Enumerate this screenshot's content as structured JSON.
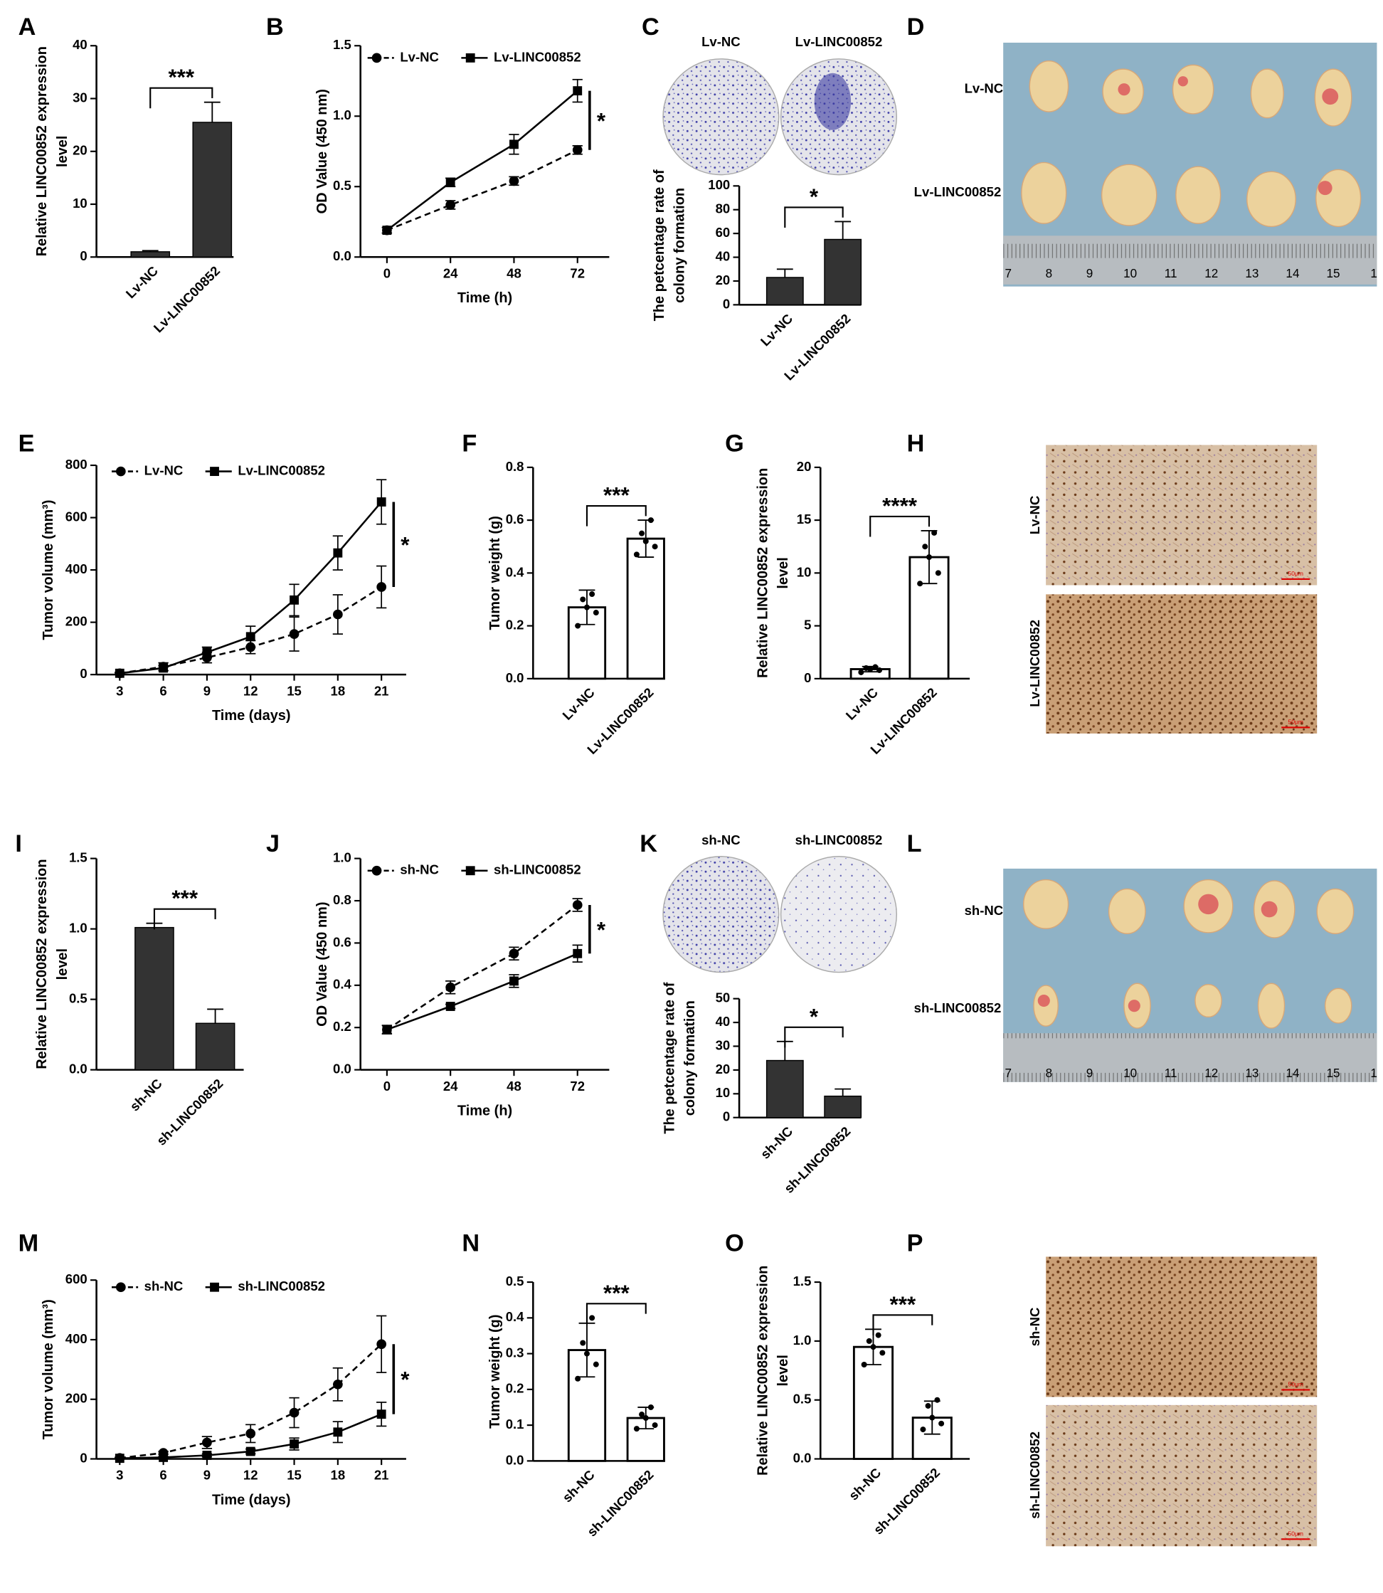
{
  "chart_data": [
    {
      "type": "bar",
      "panel": "A",
      "ylabel": [
        "Relative LINC00852 expression",
        "level"
      ],
      "categories": [
        "Lv-NC",
        "Lv-LINC00852"
      ],
      "values": [
        1,
        25.5
      ],
      "errors": [
        0.2,
        3.8
      ],
      "bar_fill": "#333333",
      "ylim": [
        0,
        40
      ],
      "yticks": [
        0,
        10,
        20,
        30,
        40
      ],
      "significance": "***"
    },
    {
      "type": "line",
      "panel": "B",
      "ylabel": [
        "OD Value (450 nm)"
      ],
      "xlabel": "Time (h)",
      "x": [
        0,
        24,
        48,
        72
      ],
      "xlim": [
        -10,
        84
      ],
      "xticks": [
        0,
        24,
        48,
        72
      ],
      "ylim": [
        0,
        1.5
      ],
      "yticks": [
        {
          "value": 0,
          "label": "0.0"
        },
        0.5,
        {
          "value": 1,
          "label": "1.0"
        },
        1.5
      ],
      "legend": "upper left",
      "series": [
        {
          "name": "Lv-NC",
          "color": "#000000",
          "line_style": "dashed",
          "marker": "circle",
          "values": [
            0.19,
            0.37,
            0.54,
            0.76
          ],
          "errors": [
            0.02,
            0.03,
            0.03,
            0.03
          ]
        },
        {
          "name": "Lv-LINC00852",
          "color": "#000000",
          "line_style": "solid",
          "marker": "square",
          "values": [
            0.19,
            0.53,
            0.8,
            1.18
          ],
          "errors": [
            0.02,
            0.03,
            0.07,
            0.08
          ]
        }
      ],
      "significance": "*"
    },
    {
      "type": "bar",
      "ylabel": [
        "The petcentage rate of",
        "colony formation"
      ],
      "categories": [
        "Lv-NC",
        "Lv-LINC00852"
      ],
      "values": [
        23,
        55
      ],
      "errors": [
        7,
        15
      ],
      "bar_fill": "#333333",
      "ylim": [
        0,
        100
      ],
      "yticks": [
        0,
        20,
        40,
        60,
        80,
        100
      ],
      "significance": "*"
    },
    {
      "type": "line",
      "panel": "E",
      "ylabel": [
        "Tumor volume (mm³)"
      ],
      "xlabel": "Time (days)",
      "x": [
        3,
        6,
        9,
        12,
        15,
        18,
        21
      ],
      "xlim": [
        1.4,
        22.7
      ],
      "xticks": [
        3,
        6,
        9,
        12,
        15,
        18,
        21
      ],
      "ylim": [
        0,
        800
      ],
      "yticks": [
        0,
        200,
        400,
        600,
        800
      ],
      "legend": "upper left",
      "series": [
        {
          "name": "Lv-NC",
          "color": "#000000",
          "line_style": "dashed",
          "marker": "circle",
          "values": [
            5,
            30,
            65,
            105,
            155,
            230,
            335
          ],
          "errors": [
            3,
            15,
            20,
            25,
            65,
            75,
            80
          ]
        },
        {
          "name": "Lv-LINC00852",
          "color": "#000000",
          "line_style": "solid",
          "marker": "square",
          "values": [
            5,
            25,
            85,
            145,
            285,
            465,
            660
          ],
          "errors": [
            3,
            10,
            20,
            40,
            60,
            65,
            85
          ]
        }
      ],
      "significance": "*"
    },
    {
      "type": "bar",
      "panel": "F",
      "ylabel": [
        "Tumor weight (g)"
      ],
      "categories": [
        "Lv-NC",
        "Lv-LINC00852"
      ],
      "values": [
        0.27,
        0.53
      ],
      "errors": [
        0.065,
        0.07
      ],
      "points": [
        [
          0.2,
          0.25,
          0.27,
          0.3,
          0.32
        ],
        [
          0.47,
          0.5,
          0.52,
          0.55,
          0.6
        ]
      ],
      "bar_fill": "#ffffff",
      "ylim": [
        0,
        0.8
      ],
      "yticks": [
        {
          "value": 0,
          "label": "0.0"
        },
        0.2,
        0.4,
        0.6,
        0.8
      ],
      "significance": "***"
    },
    {
      "type": "bar",
      "panel": "G",
      "ylabel": [
        "Relative LINC00852 expression",
        "level"
      ],
      "categories": [
        "Lv-NC",
        "Lv-LINC00852"
      ],
      "values": [
        0.9,
        11.5
      ],
      "errors": [
        0.25,
        2.5
      ],
      "points": [
        [
          0.6,
          0.8,
          0.9,
          1.0,
          1.1
        ],
        [
          9,
          10,
          11.5,
          12.5,
          13.8
        ]
      ],
      "bar_fill": "#ffffff",
      "ylim": [
        0,
        20
      ],
      "yticks": [
        0,
        5,
        10,
        15,
        20
      ],
      "significance": "****"
    },
    {
      "type": "bar",
      "panel": "I",
      "ylabel": [
        "Relative LINC00852 expression",
        "level"
      ],
      "categories": [
        "sh-NC",
        "sh-LINC00852"
      ],
      "values": [
        1.01,
        0.33
      ],
      "errors": [
        0.03,
        0.1
      ],
      "bar_fill": "#333333",
      "ylim": [
        0,
        1.5
      ],
      "yticks": [
        {
          "value": 0,
          "label": "0.0"
        },
        0.5,
        {
          "value": 1,
          "label": "1.0"
        },
        1.5
      ],
      "significance": "***"
    },
    {
      "type": "line",
      "panel": "J",
      "ylabel": [
        "OD Value (450 nm)"
      ],
      "xlabel": "Time (h)",
      "x": [
        0,
        24,
        48,
        72
      ],
      "xlim": [
        -10,
        84
      ],
      "xticks": [
        0,
        24,
        48,
        72
      ],
      "ylim": [
        0,
        1
      ],
      "yticks": [
        {
          "value": 0,
          "label": "0.0"
        },
        0.2,
        0.4,
        0.6,
        0.8,
        {
          "value": 1,
          "label": "1.0"
        }
      ],
      "legend": "upper left",
      "series": [
        {
          "name": "sh-NC",
          "color": "#000000",
          "line_style": "dashed",
          "marker": "circle",
          "values": [
            0.19,
            0.39,
            0.55,
            0.78
          ],
          "errors": [
            0.02,
            0.03,
            0.03,
            0.03
          ]
        },
        {
          "name": "sh-LINC00852",
          "color": "#000000",
          "line_style": "solid",
          "marker": "square",
          "values": [
            0.19,
            0.3,
            0.42,
            0.55
          ],
          "errors": [
            0.02,
            0.01,
            0.03,
            0.04
          ]
        }
      ],
      "significance": "*"
    },
    {
      "type": "bar",
      "ylabel": [
        "The petcentage rate of",
        "colony formation"
      ],
      "categories": [
        "sh-NC",
        "sh-LINC00852"
      ],
      "values": [
        24,
        9
      ],
      "errors": [
        8,
        3
      ],
      "bar_fill": "#333333",
      "ylim": [
        0,
        50
      ],
      "yticks": [
        0,
        10,
        20,
        30,
        40,
        50
      ],
      "significance": "*"
    },
    {
      "type": "line",
      "panel": "M",
      "ylabel": [
        "Tumor volume (mm³)"
      ],
      "xlabel": "Time (days)",
      "x": [
        3,
        6,
        9,
        12,
        15,
        18,
        21
      ],
      "xlim": [
        1.4,
        22.7
      ],
      "xticks": [
        3,
        6,
        9,
        12,
        15,
        18,
        21
      ],
      "ylim": [
        0,
        600
      ],
      "yticks": [
        0,
        200,
        400,
        600
      ],
      "legend": "upper left",
      "series": [
        {
          "name": "sh-NC",
          "color": "#000000",
          "line_style": "dashed",
          "marker": "circle",
          "values": [
            3,
            20,
            55,
            85,
            155,
            250,
            385
          ],
          "errors": [
            2,
            5,
            20,
            30,
            50,
            55,
            95
          ]
        },
        {
          "name": "sh-LINC00852",
          "color": "#000000",
          "line_style": "solid",
          "marker": "square",
          "values": [
            2,
            5,
            12,
            25,
            50,
            90,
            150
          ],
          "errors": [
            1,
            3,
            5,
            8,
            20,
            35,
            40
          ]
        }
      ],
      "significance": "*"
    },
    {
      "type": "bar",
      "panel": "N",
      "ylabel": [
        "Tumor weight (g)"
      ],
      "categories": [
        "sh-NC",
        "sh-LINC00852"
      ],
      "values": [
        0.31,
        0.12
      ],
      "errors": [
        0.075,
        0.03
      ],
      "points": [
        [
          0.23,
          0.27,
          0.3,
          0.33,
          0.4
        ],
        [
          0.09,
          0.1,
          0.12,
          0.13,
          0.15
        ]
      ],
      "bar_fill": "#ffffff",
      "ylim": [
        0,
        0.5
      ],
      "yticks": [
        {
          "value": 0,
          "label": "0.0"
        },
        0.1,
        0.2,
        0.3,
        0.4,
        0.5
      ],
      "significance": "***"
    },
    {
      "type": "bar",
      "panel": "O",
      "ylabel": [
        "Relative LINC00852 expression",
        "level"
      ],
      "categories": [
        "sh-NC",
        "sh-LINC00852"
      ],
      "values": [
        0.95,
        0.35
      ],
      "errors": [
        0.15,
        0.14
      ],
      "points": [
        [
          0.8,
          0.9,
          0.95,
          1.0,
          1.05
        ],
        [
          0.25,
          0.3,
          0.35,
          0.45,
          0.5
        ]
      ],
      "bar_fill": "#ffffff",
      "ylim": [
        0,
        1.5
      ],
      "yticks": [
        {
          "value": 0,
          "label": "0.0"
        },
        0.5,
        {
          "value": 1,
          "label": "1.0"
        },
        1.5
      ],
      "significance": "***"
    }
  ],
  "photos": [
    {
      "panel": "C",
      "labels": [
        "Lv-NC",
        "Lv-LINC00852"
      ]
    },
    {
      "panel": "D",
      "labels": [
        "Lv-NC",
        "Lv-LINC00852"
      ],
      "ruler": [
        "7",
        "8",
        "9",
        "10",
        "11",
        "12",
        "13",
        "14",
        "15",
        "1"
      ]
    },
    {
      "panel": "H",
      "labels": [
        "Lv-NC",
        "Lv-LINC00852"
      ],
      "scale_bar": "50μm"
    },
    {
      "panel": "K",
      "labels": [
        "sh-NC",
        "sh-LINC00852"
      ]
    },
    {
      "panel": "L",
      "labels": [
        "sh-NC",
        "sh-LINC00852"
      ],
      "ruler": [
        "7",
        "8",
        "9",
        "10",
        "11",
        "12",
        "13",
        "14",
        "15",
        "1"
      ]
    },
    {
      "panel": "P",
      "labels": [
        "sh-NC",
        "sh-LINC00852"
      ],
      "scale_bar": "50μm"
    }
  ]
}
